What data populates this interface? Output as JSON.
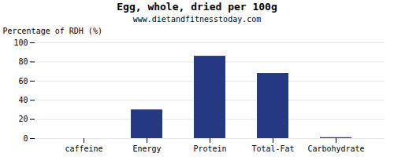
{
  "chart_data": {
    "type": "bar",
    "title": "Egg, whole, dried per 100g",
    "subtitle": "www.dietandfitnesstoday.com",
    "categories": [
      "caffeine",
      "Energy",
      "Protein",
      "Total-Fat",
      "Carbohydrate"
    ],
    "values": [
      0,
      30,
      86,
      68,
      1
    ],
    "color": "#253882",
    "ylabel": "Percentage of RDH (%)",
    "ylim": [
      0,
      100
    ],
    "yticks": [
      0,
      20,
      40,
      60,
      80,
      100
    ],
    "grid": true
  }
}
